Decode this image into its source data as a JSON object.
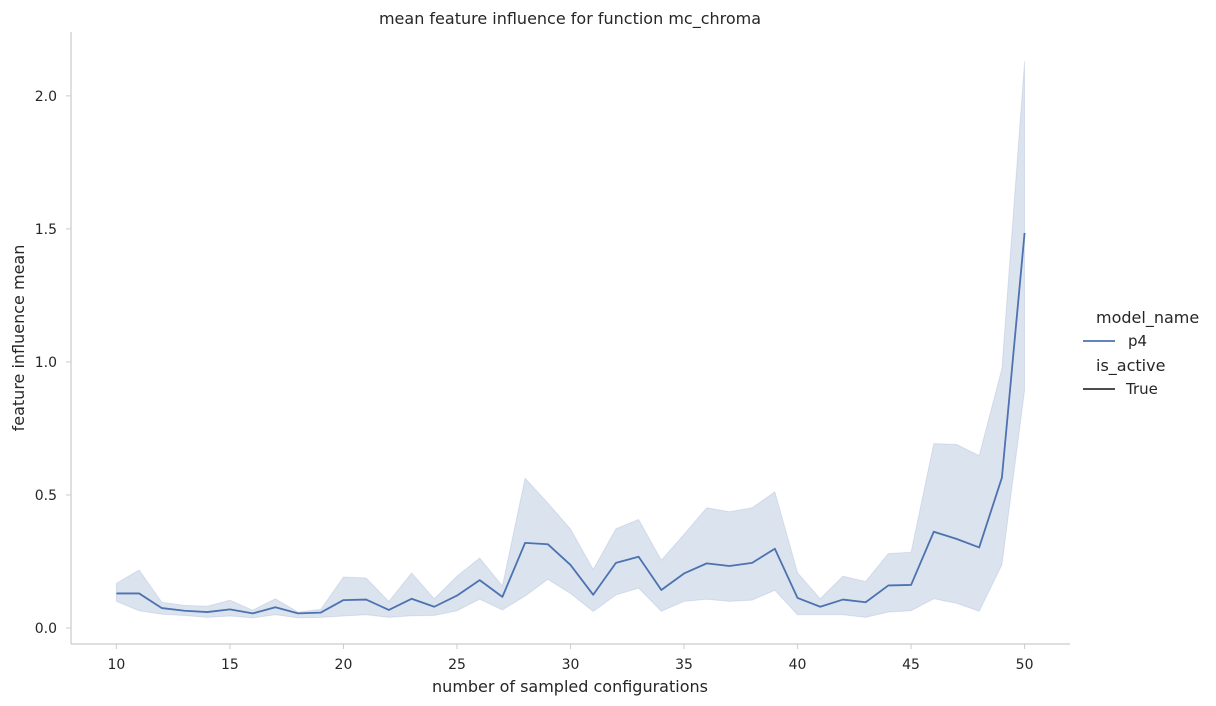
{
  "chart_data": {
    "type": "line",
    "title": "mean feature influence for function mc_chroma",
    "xlabel": "number of sampled configurations",
    "ylabel": "feature influence mean",
    "xlim": [
      8,
      52
    ],
    "ylim": [
      -0.06,
      2.24
    ],
    "xticks": [
      10,
      15,
      20,
      25,
      30,
      35,
      40,
      45,
      50
    ],
    "yticks": [
      0.0,
      0.5,
      1.0,
      1.5,
      2.0
    ],
    "ytick_labels": [
      "0.0",
      "0.5",
      "1.0",
      "1.5",
      "2.0"
    ],
    "grid": false,
    "legend_position": "right",
    "legend": {
      "hue_title": "model_name",
      "hue_entries": [
        {
          "label": "p4",
          "color": "#4c72b0"
        }
      ],
      "style_title": "is_active",
      "style_entries": [
        {
          "label": "True",
          "color": "#333333"
        }
      ]
    },
    "series": [
      {
        "name": "p4",
        "color": "#4c72b0",
        "band_color": "#4c72b0",
        "x": [
          10,
          11,
          12,
          13,
          14,
          15,
          16,
          17,
          18,
          19,
          20,
          21,
          22,
          23,
          24,
          25,
          26,
          27,
          28,
          29,
          30,
          31,
          32,
          33,
          34,
          35,
          36,
          37,
          38,
          39,
          40,
          41,
          42,
          43,
          44,
          45,
          46,
          47,
          48,
          49,
          50
        ],
        "y": [
          0.13,
          0.13,
          0.075,
          0.065,
          0.06,
          0.07,
          0.055,
          0.078,
          0.055,
          0.058,
          0.105,
          0.107,
          0.068,
          0.11,
          0.08,
          0.122,
          0.18,
          0.117,
          0.32,
          0.315,
          0.237,
          0.125,
          0.245,
          0.268,
          0.143,
          0.205,
          0.243,
          0.233,
          0.245,
          0.298,
          0.113,
          0.08,
          0.107,
          0.097,
          0.16,
          0.162,
          0.362,
          0.335,
          0.303,
          0.565,
          1.485
        ],
        "y_low": [
          0.1,
          0.065,
          0.052,
          0.047,
          0.04,
          0.045,
          0.038,
          0.05,
          0.038,
          0.04,
          0.045,
          0.05,
          0.04,
          0.046,
          0.047,
          0.065,
          0.108,
          0.068,
          0.12,
          0.183,
          0.13,
          0.062,
          0.124,
          0.15,
          0.063,
          0.1,
          0.108,
          0.1,
          0.105,
          0.142,
          0.05,
          0.05,
          0.05,
          0.04,
          0.06,
          0.065,
          0.11,
          0.093,
          0.063,
          0.237,
          0.893
        ],
        "y_high": [
          0.168,
          0.218,
          0.097,
          0.085,
          0.082,
          0.105,
          0.067,
          0.11,
          0.06,
          0.07,
          0.192,
          0.188,
          0.1,
          0.207,
          0.11,
          0.195,
          0.263,
          0.158,
          0.563,
          0.47,
          0.372,
          0.22,
          0.373,
          0.408,
          0.255,
          0.352,
          0.452,
          0.437,
          0.452,
          0.512,
          0.208,
          0.11,
          0.195,
          0.175,
          0.28,
          0.285,
          0.693,
          0.69,
          0.648,
          0.975,
          2.13
        ]
      }
    ]
  }
}
